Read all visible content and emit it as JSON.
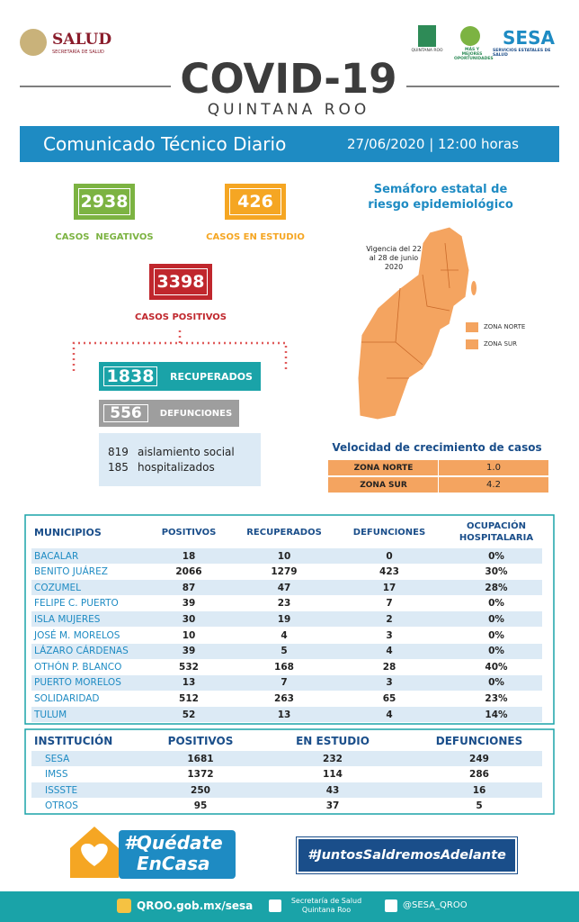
{
  "header": {
    "salud_logo": "SALUD",
    "salud_sub": "SECRETARÍA DE SALUD",
    "qroo_logo": "QUINTANA ROO",
    "oportunidades": "MÁS Y MEJORES OPORTUNIDADES",
    "sesa_logo": "SESA",
    "sesa_sub": "SERVICIOS ESTATALES DE SALUD",
    "title": "COVID-19",
    "subtitle": "QUINTANA ROO"
  },
  "banner": {
    "title": "Comunicado Técnico Diario",
    "date": "27/06/2020 | 12:00 horas"
  },
  "cases": {
    "negative": {
      "value": 2938,
      "label": "CASOS  NEGATIVOS"
    },
    "study": {
      "value": 426,
      "label": "CASOS EN ESTUDIO"
    },
    "positive": {
      "value": 3398,
      "label": "CASOS POSITIVOS"
    },
    "recovered": {
      "value": 1838,
      "label": "RECUPERADOS"
    },
    "deaths": {
      "value": 556,
      "label": "DEFUNCIONES"
    },
    "isolation": {
      "value": 819,
      "label": "aislamiento social"
    },
    "hospitalized": {
      "value": 185,
      "label": "hospitalizados"
    }
  },
  "map": {
    "title": "Semáforo estatal de riesgo epidemiológico",
    "validity": "Vigencia del 22 al 28 de junio 2020",
    "legend": [
      "ZONA NORTE",
      "ZONA SUR"
    ]
  },
  "growth": {
    "title": "Velocidad de crecimiento de casos",
    "rows": [
      [
        "ZONA NORTE",
        "1.0"
      ],
      [
        "ZONA SUR",
        "4.2"
      ]
    ]
  },
  "municipalities": {
    "header": [
      "MUNICIPIOS",
      "POSITIVOS",
      "RECUPERADOS",
      "DEFUNCIONES",
      "OCUPACIÓN HOSPITALARIA"
    ],
    "rows": [
      [
        "BACALAR",
        18,
        10,
        0,
        "0%"
      ],
      [
        "BENITO JUÁREZ",
        2066,
        1279,
        423,
        "30%"
      ],
      [
        "COZUMEL",
        87,
        47,
        17,
        "28%"
      ],
      [
        "FELIPE C. PUERTO",
        39,
        23,
        7,
        "0%"
      ],
      [
        "ISLA MUJERES",
        30,
        19,
        2,
        "0%"
      ],
      [
        "JOSÉ M. MORELOS",
        10,
        4,
        3,
        "0%"
      ],
      [
        "LÁZARO CÁRDENAS",
        39,
        5,
        4,
        "0%"
      ],
      [
        "OTHÓN P. BLANCO",
        532,
        168,
        28,
        "40%"
      ],
      [
        "PUERTO MORELOS",
        13,
        7,
        3,
        "0%"
      ],
      [
        "SOLIDARIDAD",
        512,
        263,
        65,
        "23%"
      ],
      [
        "TULUM",
        52,
        13,
        4,
        "14%"
      ]
    ]
  },
  "institutions": {
    "header": [
      "INSTITUCIÓN",
      "POSITIVOS",
      "EN ESTUDIO",
      "DEFUNCIONES"
    ],
    "rows": [
      [
        "SESA",
        1681,
        232,
        249
      ],
      [
        "IMSS",
        1372,
        114,
        286
      ],
      [
        "ISSSTE",
        250,
        43,
        16
      ],
      [
        "OTROS",
        95,
        37,
        5
      ]
    ]
  },
  "footer": {
    "stay_home": [
      "#Quédate",
      "EnCasa"
    ],
    "together": "#JuntosSaldremosAdelante",
    "website": "QROO.gob.mx/sesa",
    "secretaria": "Secretaría de Salud Quintana Roo",
    "twitter": "@SESA_QROO"
  }
}
